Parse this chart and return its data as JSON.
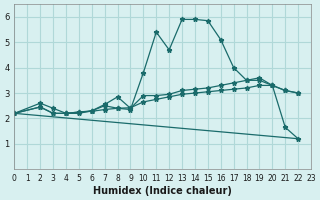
{
  "xlabel": "Humidex (Indice chaleur)",
  "bg_color": "#d8f0f0",
  "grid_color": "#b0d8d8",
  "line_color": "#1a6b6b",
  "xlim": [
    0,
    23
  ],
  "ylim": [
    0,
    6.5
  ],
  "yticks": [
    1,
    2,
    3,
    4,
    5,
    6
  ],
  "xticks": [
    0,
    1,
    2,
    3,
    4,
    5,
    6,
    7,
    8,
    9,
    10,
    11,
    12,
    13,
    14,
    15,
    16,
    17,
    18,
    19,
    20,
    21,
    22,
    23
  ],
  "series": [
    {
      "x": [
        0,
        2,
        3,
        4,
        5,
        6,
        7,
        8,
        9,
        10,
        11,
        12,
        13,
        14,
        15,
        16,
        17,
        18,
        19,
        20,
        21,
        22
      ],
      "y": [
        2.2,
        2.6,
        2.4,
        2.2,
        2.2,
        2.3,
        2.5,
        2.4,
        2.35,
        3.8,
        5.4,
        4.7,
        5.9,
        5.9,
        5.85,
        5.1,
        4.0,
        3.5,
        3.6,
        3.3,
        1.65,
        1.2
      ],
      "has_markers": true
    },
    {
      "x": [
        0,
        2,
        3,
        4,
        5,
        6,
        7,
        8,
        9,
        10,
        11,
        12,
        13,
        14,
        15,
        16,
        17,
        18,
        19,
        20,
        21,
        22
      ],
      "y": [
        2.2,
        2.45,
        2.2,
        2.2,
        2.25,
        2.3,
        2.55,
        2.85,
        2.4,
        2.9,
        2.9,
        2.95,
        3.1,
        3.15,
        3.2,
        3.3,
        3.4,
        3.5,
        3.5,
        3.3,
        3.1,
        3.0
      ],
      "has_markers": true
    },
    {
      "x": [
        0,
        2,
        3,
        4,
        5,
        6,
        7,
        8,
        9,
        10,
        11,
        12,
        13,
        14,
        15,
        16,
        17,
        18,
        19,
        20,
        21,
        22
      ],
      "y": [
        2.2,
        2.45,
        2.2,
        2.2,
        2.25,
        2.28,
        2.35,
        2.4,
        2.42,
        2.65,
        2.75,
        2.85,
        2.95,
        3.0,
        3.05,
        3.1,
        3.15,
        3.2,
        3.3,
        3.3,
        3.1,
        3.0
      ],
      "has_markers": true
    },
    {
      "x": [
        0,
        22
      ],
      "y": [
        2.2,
        1.2
      ],
      "has_markers": false
    }
  ]
}
